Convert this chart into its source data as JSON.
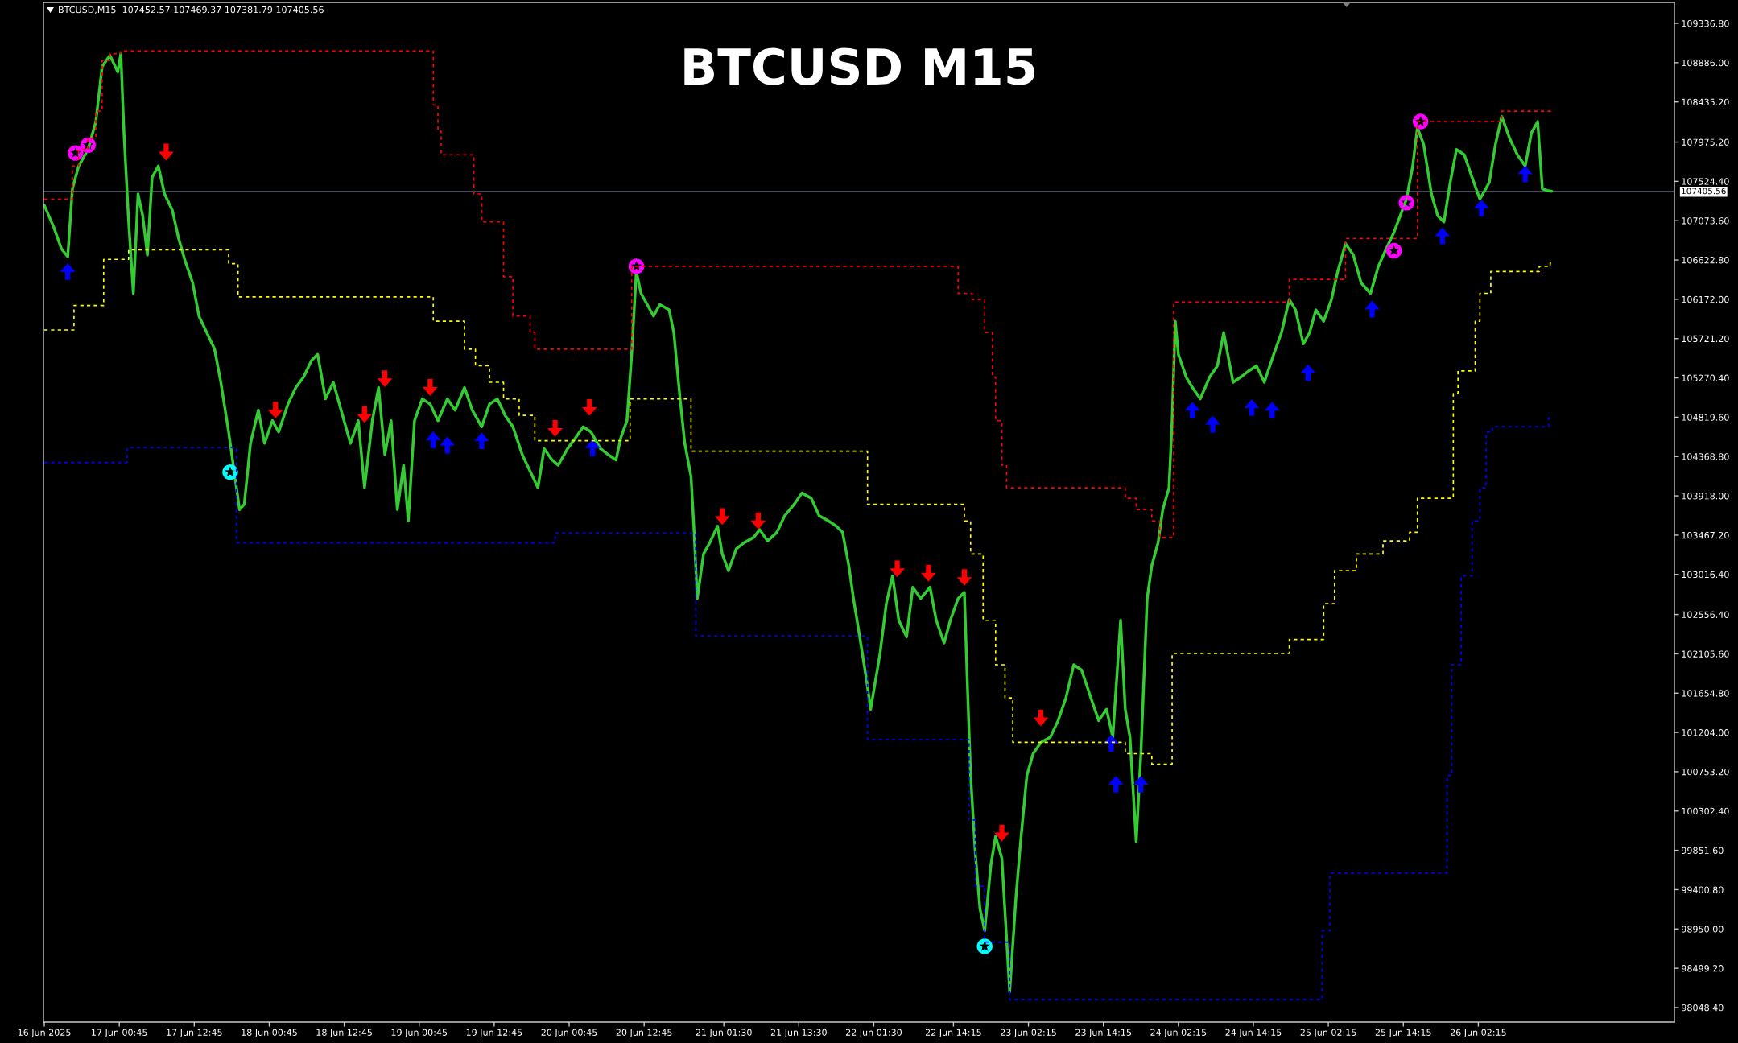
{
  "chart_data": {
    "type": "line",
    "title": "BTCUSD M15",
    "subtitle": "BTCUSD,M15  107452.57 107469.37 107381.79 107405.56",
    "xlim": [
      "2025-06-16T12:37",
      "2025-06-27T09:38"
    ],
    "xticks": [
      {
        "value": "2025-06-16T12:45",
        "label": "16 Jun 2025"
      },
      {
        "value": "2025-06-17T00:45",
        "label": "17 Jun 00:45"
      },
      {
        "value": "2025-06-17T12:45",
        "label": "17 Jun 12:45"
      },
      {
        "value": "2025-06-18T00:45",
        "label": "18 Jun 00:45"
      },
      {
        "value": "2025-06-18T12:45",
        "label": "18 Jun 12:45"
      },
      {
        "value": "2025-06-19T00:45",
        "label": "19 Jun 00:45"
      },
      {
        "value": "2025-06-19T12:45",
        "label": "19 Jun 12:45"
      },
      {
        "value": "2025-06-20T00:45",
        "label": "20 Jun 00:45"
      },
      {
        "value": "2025-06-20T12:45",
        "label": "20 Jun 12:45"
      },
      {
        "value": "2025-06-21T01:30",
        "label": "21 Jun 01:30"
      },
      {
        "value": "2025-06-21T13:30",
        "label": "21 Jun 13:30"
      },
      {
        "value": "2025-06-22T01:30",
        "label": "22 Jun 01:30"
      },
      {
        "value": "2025-06-22T14:15",
        "label": "22 Jun 14:15"
      },
      {
        "value": "2025-06-23T02:15",
        "label": "23 Jun 02:15"
      },
      {
        "value": "2025-06-23T14:15",
        "label": "23 Jun 14:15"
      },
      {
        "value": "2025-06-24T02:15",
        "label": "24 Jun 02:15"
      },
      {
        "value": "2025-06-24T14:15",
        "label": "24 Jun 14:15"
      },
      {
        "value": "2025-06-25T02:15",
        "label": "25 Jun 02:15"
      },
      {
        "value": "2025-06-25T14:15",
        "label": "25 Jun 14:15"
      },
      {
        "value": "2025-06-26T02:15",
        "label": "26 Jun 02:15"
      }
    ],
    "ylim": [
      97882,
      109577
    ],
    "yticks": [
      {
        "value": 98048.4,
        "label": "98048.40"
      },
      {
        "value": 98499.2,
        "label": "98499.20"
      },
      {
        "value": 98950.0,
        "label": "98950.00"
      },
      {
        "value": 99400.8,
        "label": "99400.80"
      },
      {
        "value": 99851.6,
        "label": "99851.60"
      },
      {
        "value": 100302.4,
        "label": "100302.40"
      },
      {
        "value": 100753.2,
        "label": "100753.20"
      },
      {
        "value": 101204.0,
        "label": "101204.00"
      },
      {
        "value": 101654.8,
        "label": "101654.80"
      },
      {
        "value": 102105.6,
        "label": "102105.60"
      },
      {
        "value": 102556.4,
        "label": "102556.40"
      },
      {
        "value": 103016.4,
        "label": "103016.40"
      },
      {
        "value": 103467.2,
        "label": "103467.20"
      },
      {
        "value": 103918.0,
        "label": "103918.00"
      },
      {
        "value": 104368.8,
        "label": "104368.80"
      },
      {
        "value": 104819.6,
        "label": "104819.60"
      },
      {
        "value": 105270.4,
        "label": "105270.40"
      },
      {
        "value": 105721.2,
        "label": "105721.20"
      },
      {
        "value": 106172.0,
        "label": "106172.00"
      },
      {
        "value": 106622.8,
        "label": "106622.80"
      },
      {
        "value": 107073.6,
        "label": "107073.60"
      },
      {
        "value": 107524.4,
        "label": "107524.40"
      },
      {
        "value": 107975.2,
        "label": "107975.20"
      },
      {
        "value": 108435.2,
        "label": "108435.20"
      },
      {
        "value": 108886.0,
        "label": "108886.00"
      },
      {
        "value": 109336.8,
        "label": "109336.80"
      }
    ],
    "grid": false,
    "ref_lines": [
      {
        "axis": "y",
        "value": 107405.56,
        "label": "107405.56",
        "color": "#8c96a5",
        "line_style": "solid"
      }
    ],
    "series": [
      {
        "type": "step",
        "color": "#ff0000",
        "line_style": "dotted",
        "x": [
          "2025-06-16T12:45",
          "2025-06-16T17:15",
          "2025-06-16T18:15",
          "2025-06-16T19:45",
          "2025-06-16T21:00",
          "2025-06-16T22:00",
          "2025-06-16T23:15",
          "2025-06-17T01:00",
          "2025-06-19T03:00",
          "2025-06-19T03:45",
          "2025-06-19T04:15",
          "2025-06-19T09:30",
          "2025-06-19T10:45",
          "2025-06-19T14:15",
          "2025-06-19T15:45",
          "2025-06-19T18:30",
          "2025-06-19T19:15",
          "2025-06-20T10:45",
          "2025-06-22T15:00",
          "2025-06-22T17:15",
          "2025-06-22T19:15",
          "2025-06-22T20:30",
          "2025-06-22T21:00",
          "2025-06-22T22:00",
          "2025-06-22T22:45",
          "2025-06-23T17:45",
          "2025-06-23T19:30",
          "2025-06-23T22:00",
          "2025-06-23T23:15",
          "2025-06-24T01:30",
          "2025-06-24T20:00",
          "2025-06-25T05:00",
          "2025-06-25T16:30",
          "2025-06-26T06:00",
          "2025-06-26T14:00"
        ],
        "values": [
          107320,
          107700,
          107890,
          108020,
          108330,
          108910,
          108990,
          109020,
          108400,
          108100,
          107830,
          107380,
          107060,
          106430,
          105980,
          105790,
          105600,
          106550,
          106240,
          106170,
          105790,
          105280,
          104780,
          104270,
          104010,
          103890,
          103760,
          103630,
          103440,
          106140,
          106400,
          106870,
          108210,
          108330,
          108330
        ]
      },
      {
        "type": "step",
        "color": "#ffff00",
        "line_style": "dotted",
        "x": [
          "2025-06-16T12:45",
          "2025-06-16T17:30",
          "2025-06-16T22:15",
          "2025-06-17T02:15",
          "2025-06-17T18:15",
          "2025-06-17T19:45",
          "2025-06-19T03:00",
          "2025-06-19T08:00",
          "2025-06-19T09:45",
          "2025-06-19T12:00",
          "2025-06-19T14:15",
          "2025-06-19T16:45",
          "2025-06-19T19:15",
          "2025-06-20T10:30",
          "2025-06-20T20:15",
          "2025-06-22T00:30",
          "2025-06-22T16:00",
          "2025-06-22T17:00",
          "2025-06-22T19:00",
          "2025-06-22T21:00",
          "2025-06-22T22:30",
          "2025-06-22T23:45",
          "2025-06-23T17:45",
          "2025-06-23T22:00",
          "2025-06-24T01:15",
          "2025-06-24T20:00",
          "2025-06-25T01:30",
          "2025-06-25T03:15",
          "2025-06-25T06:45",
          "2025-06-25T11:00",
          "2025-06-25T15:15",
          "2025-06-25T16:30",
          "2025-06-25T22:15",
          "2025-06-25T23:00",
          "2025-06-26T01:45",
          "2025-06-26T02:30",
          "2025-06-26T04:15",
          "2025-06-26T12:00",
          "2025-06-26T13:45",
          "2025-06-26T14:00"
        ],
        "values": [
          105820,
          106100,
          106630,
          106740,
          106580,
          106200,
          105920,
          105600,
          105410,
          105220,
          105030,
          104840,
          104550,
          105030,
          104430,
          103820,
          103630,
          103250,
          102490,
          101980,
          101600,
          101090,
          100960,
          100840,
          102110,
          102270,
          102680,
          103060,
          103250,
          103400,
          103500,
          103890,
          105090,
          105350,
          105920,
          106240,
          106490,
          106550,
          106590,
          106590
        ]
      },
      {
        "type": "step",
        "color": "#0000ff",
        "line_style": "dotted",
        "x": [
          "2025-06-16T12:45",
          "2025-06-17T02:00",
          "2025-06-17T19:30",
          "2025-06-19T22:30",
          "2025-06-20T21:00",
          "2025-06-22T00:30",
          "2025-06-22T16:45",
          "2025-06-22T17:45",
          "2025-06-22T19:15",
          "2025-06-22T23:15",
          "2025-06-25T01:15",
          "2025-06-25T02:30",
          "2025-06-25T21:15",
          "2025-06-25T22:00",
          "2025-06-25T23:30",
          "2025-06-26T01:15",
          "2025-06-26T02:30",
          "2025-06-26T03:30",
          "2025-06-26T04:30",
          "2025-06-26T13:30",
          "2025-06-26T14:00"
        ],
        "values": [
          104300,
          104470,
          103380,
          103490,
          102310,
          101120,
          100200,
          99440,
          98800,
          98140,
          98930,
          99590,
          100710,
          101980,
          103000,
          103630,
          104010,
          104650,
          104710,
          104810,
          104810
        ]
      },
      {
        "color": "#33cc33",
        "line_style": "solid",
        "x": [
          "2025-06-16T12:45",
          "2025-06-16T14:15",
          "2025-06-16T15:30",
          "2025-06-16T16:30",
          "2025-06-16T17:15",
          "2025-06-16T18:15",
          "2025-06-16T19:45",
          "2025-06-16T21:00",
          "2025-06-16T22:00",
          "2025-06-16T23:15",
          "2025-06-17T00:30",
          "2025-06-17T01:00",
          "2025-06-17T01:30",
          "2025-06-17T02:15",
          "2025-06-17T03:00",
          "2025-06-17T03:45",
          "2025-06-17T04:30",
          "2025-06-17T05:15",
          "2025-06-17T06:00",
          "2025-06-17T07:00",
          "2025-06-17T08:00",
          "2025-06-17T09:15",
          "2025-06-17T10:15",
          "2025-06-17T11:15",
          "2025-06-17T12:30",
          "2025-06-17T13:30",
          "2025-06-17T14:45",
          "2025-06-17T16:00",
          "2025-06-17T17:00",
          "2025-06-17T18:15",
          "2025-06-17T19:00",
          "2025-06-17T20:00",
          "2025-06-17T20:45",
          "2025-06-17T21:45",
          "2025-06-17T23:00",
          "2025-06-18T00:00",
          "2025-06-18T01:15",
          "2025-06-18T02:15",
          "2025-06-18T03:45",
          "2025-06-18T05:00",
          "2025-06-18T06:15",
          "2025-06-18T07:30",
          "2025-06-18T08:30",
          "2025-06-18T09:45",
          "2025-06-18T11:00",
          "2025-06-18T12:15",
          "2025-06-18T13:45",
          "2025-06-18T15:00",
          "2025-06-18T16:00",
          "2025-06-18T17:15",
          "2025-06-18T18:15",
          "2025-06-18T19:15",
          "2025-06-18T20:15",
          "2025-06-18T21:15",
          "2025-06-18T22:15",
          "2025-06-18T23:00",
          "2025-06-19T00:00",
          "2025-06-19T01:15",
          "2025-06-19T02:30",
          "2025-06-19T03:45",
          "2025-06-19T05:15",
          "2025-06-19T06:30",
          "2025-06-19T08:00",
          "2025-06-19T09:15",
          "2025-06-19T10:45",
          "2025-06-19T12:00",
          "2025-06-19T13:15",
          "2025-06-19T14:30",
          "2025-06-19T15:45",
          "2025-06-19T17:15",
          "2025-06-19T18:30",
          "2025-06-19T19:45",
          "2025-06-19T20:45",
          "2025-06-19T22:00",
          "2025-06-19T23:00",
          "2025-06-20T00:30",
          "2025-06-20T01:45",
          "2025-06-20T03:00",
          "2025-06-20T04:15",
          "2025-06-20T05:45",
          "2025-06-20T07:00",
          "2025-06-20T08:15",
          "2025-06-20T09:00",
          "2025-06-20T10:00",
          "2025-06-20T10:45",
          "2025-06-20T11:30",
          "2025-06-20T12:15",
          "2025-06-20T14:15",
          "2025-06-20T15:15",
          "2025-06-20T16:45",
          "2025-06-20T17:30",
          "2025-06-20T18:30",
          "2025-06-20T19:15",
          "2025-06-20T20:15",
          "2025-06-20T20:45",
          "2025-06-20T21:15",
          "2025-06-20T22:15",
          "2025-06-20T23:15",
          "2025-06-21T00:30",
          "2025-06-21T01:15",
          "2025-06-21T02:15",
          "2025-06-21T03:30",
          "2025-06-21T04:45",
          "2025-06-21T06:15",
          "2025-06-21T07:15",
          "2025-06-21T08:30",
          "2025-06-21T10:00",
          "2025-06-21T11:15",
          "2025-06-21T12:45",
          "2025-06-21T14:00",
          "2025-06-21T15:30",
          "2025-06-21T16:45",
          "2025-06-21T18:15",
          "2025-06-21T19:30",
          "2025-06-21T20:30",
          "2025-06-21T21:30",
          "2025-06-21T22:15",
          "2025-06-21T23:15",
          "2025-06-22T00:15",
          "2025-06-22T01:00",
          "2025-06-22T02:30",
          "2025-06-22T03:30",
          "2025-06-22T04:30",
          "2025-06-22T05:30",
          "2025-06-22T06:45",
          "2025-06-22T07:45",
          "2025-06-22T09:00",
          "2025-06-22T10:30",
          "2025-06-22T11:30",
          "2025-06-22T12:45",
          "2025-06-22T13:45",
          "2025-06-22T15:00",
          "2025-06-22T16:00",
          "2025-06-22T16:30",
          "2025-06-22T17:00",
          "2025-06-22T17:45",
          "2025-06-22T18:30",
          "2025-06-22T19:15",
          "2025-06-22T20:15",
          "2025-06-22T21:00",
          "2025-06-22T22:00",
          "2025-06-22T23:15",
          "2025-06-23T00:15",
          "2025-06-23T01:00",
          "2025-06-23T02:00",
          "2025-06-23T03:00",
          "2025-06-23T04:15",
          "2025-06-23T05:45",
          "2025-06-23T07:00",
          "2025-06-23T08:15",
          "2025-06-23T09:30",
          "2025-06-23T10:45",
          "2025-06-23T12:15",
          "2025-06-23T13:30",
          "2025-06-23T14:45",
          "2025-06-23T15:45",
          "2025-06-23T17:00",
          "2025-06-23T17:45",
          "2025-06-23T18:30",
          "2025-06-23T19:30",
          "2025-06-23T20:15",
          "2025-06-23T21:15",
          "2025-06-23T22:00",
          "2025-06-23T23:00",
          "2025-06-23T23:45",
          "2025-06-24T00:45",
          "2025-06-24T01:15",
          "2025-06-24T01:45",
          "2025-06-24T02:15",
          "2025-06-24T03:30",
          "2025-06-24T04:30",
          "2025-06-24T05:45",
          "2025-06-24T07:15",
          "2025-06-24T08:30",
          "2025-06-24T09:30",
          "2025-06-24T11:00",
          "2025-06-24T12:15",
          "2025-06-24T13:30",
          "2025-06-24T14:45",
          "2025-06-24T16:00",
          "2025-06-24T17:30",
          "2025-06-24T18:45",
          "2025-06-24T20:00",
          "2025-06-24T21:00",
          "2025-06-24T22:15",
          "2025-06-24T23:15",
          "2025-06-25T00:15",
          "2025-06-25T01:30",
          "2025-06-25T02:45",
          "2025-06-25T03:45",
          "2025-06-25T05:00",
          "2025-06-25T06:15",
          "2025-06-25T07:30",
          "2025-06-25T09:00",
          "2025-06-25T10:15",
          "2025-06-25T11:30",
          "2025-06-25T12:45",
          "2025-06-25T13:45",
          "2025-06-25T14:45",
          "2025-06-25T15:45",
          "2025-06-25T16:30",
          "2025-06-25T17:30",
          "2025-06-25T18:45",
          "2025-06-25T19:45",
          "2025-06-25T20:45",
          "2025-06-25T21:45",
          "2025-06-25T22:45",
          "2025-06-26T00:00",
          "2025-06-26T01:15",
          "2025-06-26T02:30",
          "2025-06-26T04:00",
          "2025-06-26T05:00",
          "2025-06-26T06:00",
          "2025-06-26T07:15",
          "2025-06-26T08:30",
          "2025-06-26T09:45",
          "2025-06-26T10:45",
          "2025-06-26T11:45",
          "2025-06-26T12:30",
          "2025-06-26T13:15",
          "2025-06-26T14:00"
        ],
        "values": [
          107250,
          107000,
          106750,
          106660,
          107440,
          107700,
          107890,
          108210,
          108840,
          108970,
          108780,
          108990,
          108080,
          107060,
          106240,
          107380,
          107130,
          106680,
          107570,
          107700,
          107380,
          107190,
          106870,
          106620,
          106360,
          105980,
          105790,
          105600,
          105220,
          104650,
          104270,
          103760,
          103820,
          104520,
          104900,
          104520,
          104780,
          104650,
          104970,
          105160,
          105280,
          105470,
          105540,
          105030,
          105220,
          104900,
          104520,
          104780,
          104010,
          104780,
          105160,
          104390,
          104780,
          103760,
          104270,
          103630,
          104780,
          105030,
          104970,
          104780,
          105030,
          104900,
          105160,
          104900,
          104710,
          104970,
          105030,
          104840,
          104710,
          104390,
          104200,
          104010,
          104460,
          104330,
          104270,
          104460,
          104580,
          104710,
          104650,
          104460,
          104390,
          104330,
          104580,
          104780,
          105540,
          106490,
          106240,
          105980,
          106110,
          106050,
          105790,
          105030,
          104520,
          104140,
          103500,
          102740,
          103250,
          103380,
          103570,
          103250,
          103060,
          103310,
          103380,
          103440,
          103530,
          103400,
          103500,
          103690,
          103820,
          103950,
          103890,
          103690,
          103630,
          103570,
          103500,
          103120,
          102740,
          102300,
          101850,
          101470,
          102110,
          102680,
          103000,
          102490,
          102300,
          102870,
          102740,
          102870,
          102490,
          102230,
          102490,
          102740,
          102810,
          101720,
          100710,
          99820,
          99180,
          98930,
          99690,
          100010,
          99760,
          98230,
          99310,
          99950,
          100710,
          100960,
          101090,
          101150,
          101340,
          101600,
          101980,
          101920,
          101600,
          101340,
          101470,
          101150,
          102490,
          101470,
          101150,
          99950,
          100960,
          102740,
          103120,
          103380,
          103760,
          104010,
          104780,
          105920,
          105540,
          105280,
          105160,
          105030,
          105280,
          105410,
          105790,
          105220,
          105280,
          105350,
          105410,
          105220,
          105540,
          105790,
          106170,
          106050,
          105660,
          105790,
          106050,
          105920,
          106170,
          106490,
          106810,
          106680,
          106360,
          106240,
          106550,
          106750,
          106940,
          107130,
          107320,
          107700,
          108140,
          107950,
          107380,
          107130,
          107060,
          107510,
          107890,
          107830,
          107570,
          107320,
          107510,
          107950,
          108270,
          108020,
          107830,
          107700,
          108080,
          108210,
          107440,
          107420,
          107410
        ]
      },
      {
        "type": "scatter",
        "color": "#ff0000",
        "x": [
          "2025-06-17T08:15",
          "2025-06-18T01:45",
          "2025-06-18T16:00",
          "2025-06-18T19:15",
          "2025-06-19T02:30",
          "2025-06-19T22:30",
          "2025-06-20T04:00",
          "2025-06-21T01:15",
          "2025-06-21T07:00",
          "2025-06-22T05:15",
          "2025-06-22T10:15",
          "2025-06-22T16:00",
          "2025-06-22T22:00",
          "2025-06-23T04:15"
        ],
        "values": [
          107860,
          104900,
          104850,
          105260,
          105160,
          104690,
          104930,
          103680,
          103630,
          103080,
          103030,
          102980,
          100050,
          101370
        ]
      },
      {
        "type": "scatter",
        "color": "#0000ff",
        "x": [
          "2025-06-16T16:30",
          "2025-06-19T03:00",
          "2025-06-19T05:15",
          "2025-06-19T10:45",
          "2025-06-20T04:30",
          "2025-06-23T15:30",
          "2025-06-23T16:15",
          "2025-06-23T20:15",
          "2025-06-24T04:30",
          "2025-06-24T07:45",
          "2025-06-24T14:00",
          "2025-06-24T17:15",
          "2025-06-24T23:00",
          "2025-06-25T09:15",
          "2025-06-25T20:30",
          "2025-06-26T02:45",
          "2025-06-26T09:45"
        ],
        "values": [
          106490,
          104560,
          104500,
          104550,
          104470,
          101080,
          100610,
          100610,
          104900,
          104740,
          104930,
          104900,
          105330,
          106060,
          106900,
          107220,
          107610
        ]
      },
      {
        "type": "scatter",
        "color": "#ff00ff",
        "marker": "star",
        "x": [
          "2025-06-16T17:45",
          "2025-06-16T19:45",
          "2025-06-20T11:30",
          "2025-06-25T12:45",
          "2025-06-25T14:45",
          "2025-06-25T17:00"
        ],
        "values": [
          107850,
          107940,
          106550,
          106730,
          107280,
          108210
        ]
      },
      {
        "type": "scatter",
        "color": "#00ffff",
        "marker": "star",
        "x": [
          "2025-06-17T18:30",
          "2025-06-22T19:15"
        ],
        "values": [
          104190,
          98750
        ]
      }
    ]
  }
}
